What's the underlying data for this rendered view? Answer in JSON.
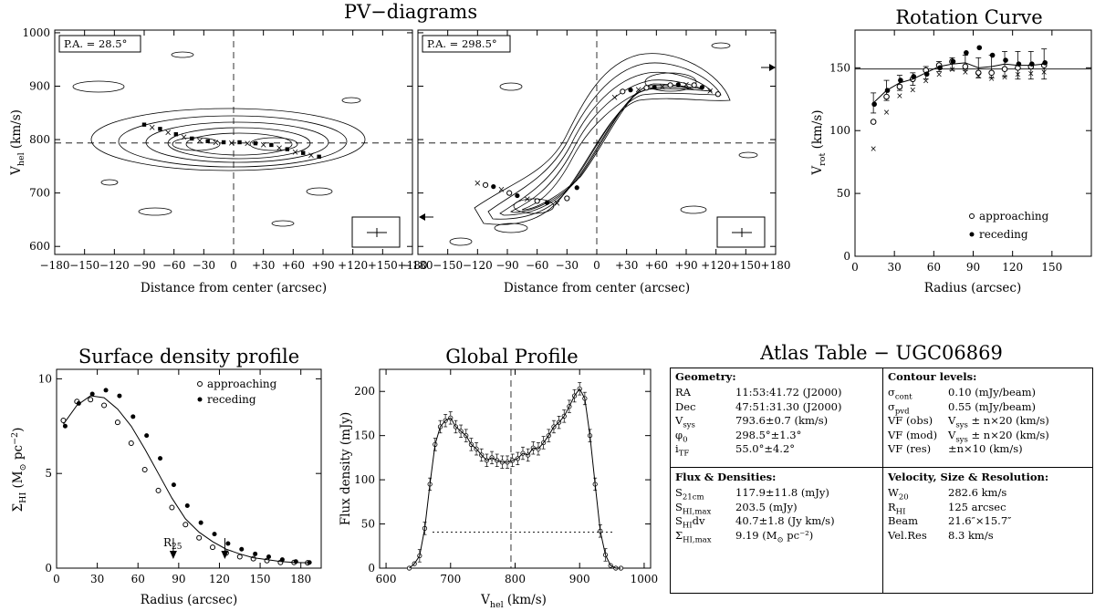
{
  "titles": {
    "pv": "PV−diagrams",
    "rotation": "Rotation Curve",
    "surface": "Surface density profile",
    "global": "Global Profile",
    "atlas": "Atlas Table − UGC06869"
  },
  "pv_left": {
    "label": "P.A. = 28.5°",
    "xlabel": "Distance from center (arcsec)",
    "ylabel_main": "V",
    "ylabel_sub": "hel",
    "ylabel_unit": " (km/s)",
    "xticks": [
      "−180",
      "−150",
      "−120",
      "−90",
      "−60",
      "−30",
      "0",
      "+30",
      "+60",
      "+90",
      "+120",
      "+150",
      "+180"
    ],
    "yticks": [
      "600",
      "700",
      "800",
      "900",
      "1000"
    ],
    "xlim": [
      -180,
      180
    ],
    "ylim": [
      585,
      1005
    ],
    "vsys": 793.6,
    "points_x": [
      -90,
      -82,
      -74,
      -66,
      -58,
      -50,
      -42,
      -34,
      -26,
      -18,
      -10,
      -2,
      6,
      14,
      22,
      30,
      38,
      46,
      54,
      62,
      70,
      78,
      86
    ],
    "points_y": [
      828,
      824,
      820,
      815,
      810,
      806,
      802,
      799,
      797,
      796,
      795,
      795,
      795,
      794,
      793,
      792,
      790,
      786,
      782,
      778,
      775,
      772,
      768
    ]
  },
  "pv_right": {
    "label": "P.A. = 298.5°",
    "xlabel": "Distance from center (arcsec)",
    "xticks": [
      "−180",
      "−150",
      "−120",
      "−90",
      "−60",
      "−30",
      "0",
      "+30",
      "+60",
      "+90",
      "+120",
      "+150",
      "+180"
    ],
    "xlim": [
      -180,
      180
    ],
    "ylim": [
      585,
      1005
    ],
    "vsys": 793.6,
    "points_x": [
      -120,
      -112,
      -104,
      -96,
      -88,
      -80,
      -70,
      -60,
      -50,
      -40,
      -30,
      -20,
      18,
      26,
      34,
      42,
      50,
      58,
      66,
      74,
      82,
      90,
      98,
      106,
      114,
      122
    ],
    "points_y": [
      720,
      715,
      712,
      708,
      700,
      695,
      690,
      685,
      682,
      682,
      690,
      710,
      880,
      890,
      893,
      895,
      897,
      898,
      900,
      902,
      903,
      904,
      902,
      898,
      892,
      885
    ]
  },
  "rotation": {
    "xlabel": "Radius (arcsec)",
    "ylabel_main": "V",
    "ylabel_sub": "rot",
    "ylabel_unit": " (km/s)",
    "xticks": [
      "0",
      "30",
      "60",
      "90",
      "120",
      "150"
    ],
    "yticks": [
      "0",
      "50",
      "100",
      "150"
    ],
    "xlim": [
      0,
      180
    ],
    "ylim": [
      0,
      180
    ],
    "hline": 149,
    "radius": [
      14,
      24,
      34,
      44,
      54,
      64,
      74,
      84,
      94,
      104,
      114,
      124,
      134,
      144
    ],
    "vrot": [
      122,
      132,
      138,
      141,
      146,
      151,
      153,
      154,
      150,
      151,
      153,
      152,
      152,
      153
    ],
    "err": [
      8,
      8,
      6,
      5,
      5,
      4,
      5,
      6,
      8,
      9,
      10,
      11,
      11,
      12
    ],
    "approaching": [
      107,
      127,
      135,
      141,
      148,
      152,
      155,
      151,
      146,
      146,
      149,
      150,
      151,
      152
    ],
    "receding": [
      121,
      132,
      140,
      143,
      145,
      150,
      155,
      162,
      166,
      160,
      156,
      153,
      153,
      154
    ],
    "model": [
      86,
      115,
      128,
      133,
      140,
      145,
      149,
      147,
      144,
      142,
      143,
      145,
      146,
      147
    ],
    "legend": [
      "approaching",
      "receding"
    ]
  },
  "surface": {
    "xlabel": "Radius (arcsec)",
    "ylabel_main": "Σ",
    "ylabel_sub": "HI",
    "ylabel_unit": " (M",
    "ylabel_tail": " pc",
    "ylabel_exp": "−2",
    "xticks": [
      "0",
      "30",
      "60",
      "90",
      "120",
      "150",
      "180"
    ],
    "yticks": [
      "0",
      "5",
      "10"
    ],
    "xlim": [
      0,
      195
    ],
    "ylim": [
      0,
      10.5
    ],
    "r25_label": "R",
    "r25_sub": "25",
    "arrows_x": [
      86,
      124
    ],
    "curve_r": [
      5,
      15,
      25,
      35,
      45,
      55,
      65,
      75,
      85,
      95,
      105,
      115,
      125,
      135,
      145,
      155,
      165,
      175,
      185
    ],
    "curve_v": [
      7.6,
      8.6,
      9.1,
      9.0,
      8.4,
      7.5,
      6.3,
      5.0,
      3.7,
      2.6,
      1.9,
      1.4,
      1.0,
      0.75,
      0.55,
      0.45,
      0.35,
      0.3,
      0.28
    ],
    "approaching": [
      7.8,
      8.8,
      8.9,
      8.6,
      7.7,
      6.6,
      5.2,
      4.1,
      3.2,
      2.3,
      1.6,
      1.1,
      0.8,
      0.6,
      0.5,
      0.4,
      0.3,
      0.3,
      0.28
    ],
    "receding": [
      7.5,
      8.7,
      9.2,
      9.4,
      9.1,
      8.0,
      7.0,
      5.8,
      4.4,
      3.3,
      2.4,
      1.8,
      1.3,
      1.0,
      0.75,
      0.6,
      0.45,
      0.35,
      0.3
    ],
    "legend": [
      "approaching",
      "receding"
    ]
  },
  "global": {
    "xlabel_main": "V",
    "xlabel_sub": "hel",
    "xlabel_unit": " (km/s)",
    "ylabel": "Flux density (mJy)",
    "xticks": [
      "600",
      "700",
      "800",
      "900",
      "1000"
    ],
    "yticks": [
      "0",
      "50",
      "100",
      "150",
      "200"
    ],
    "xlim": [
      590,
      1010
    ],
    "ylim": [
      0,
      225
    ],
    "vsys": 793.6,
    "w20_level": 40.7,
    "w20_range": [
      672,
      952
    ],
    "v": [
      636,
      644,
      652,
      660,
      668,
      676,
      684,
      692,
      700,
      708,
      716,
      724,
      732,
      740,
      748,
      756,
      764,
      772,
      780,
      788,
      796,
      804,
      812,
      820,
      828,
      836,
      844,
      852,
      860,
      868,
      876,
      884,
      892,
      900,
      908,
      916,
      924,
      932,
      940,
      948,
      956,
      964
    ],
    "flux": [
      0,
      5,
      14,
      45,
      95,
      140,
      160,
      167,
      170,
      160,
      155,
      150,
      140,
      135,
      128,
      122,
      125,
      122,
      120,
      120,
      122,
      124,
      130,
      128,
      136,
      135,
      142,
      150,
      160,
      165,
      172,
      183,
      195,
      203,
      192,
      150,
      95,
      42,
      15,
      3,
      0,
      0
    ]
  },
  "atlas": {
    "geometry": {
      "title": "Geometry:",
      "rows": [
        {
          "k": "RA",
          "v": "11:53:41.72 (J2000)"
        },
        {
          "k": "Dec",
          "v": "47:51:31.30 (J2000)"
        },
        {
          "k": "V",
          "ks": "sys",
          "v": "793.6±0.7 (km/s)"
        },
        {
          "k": "φ",
          "ks": "0",
          "v": "298.5°±1.3°"
        },
        {
          "k": "i",
          "ks": "TF",
          "v": "55.0°±4.2°"
        }
      ]
    },
    "contours": {
      "title": "Contour levels:",
      "rows": [
        {
          "k": "σ",
          "ks": "cont",
          "v": "0.10 (mJy/beam)"
        },
        {
          "k": "σ",
          "ks": "pvd",
          "v": "0.55 (mJy/beam)"
        },
        {
          "k": "VF (obs)",
          "v": "V",
          "vs": "sys",
          "vt": " ± n×20 (km/s)"
        },
        {
          "k": "VF (mod)",
          "v": "V",
          "vs": "sys",
          "vt": " ± n×20 (km/s)"
        },
        {
          "k": "VF (res)",
          "v": "±n×10 (km/s)"
        }
      ]
    },
    "flux": {
      "title": "Flux & Densities:",
      "rows": [
        {
          "k": "S",
          "ks": "21cm",
          "v": "117.9±11.8 (mJy)"
        },
        {
          "k": "S",
          "ks": "HI,max",
          "v": "203.5 (mJy)"
        },
        {
          "k": "S",
          "ks": "HI",
          "kt": "dv",
          "v": "40.7±1.8 (Jy km/s)"
        },
        {
          "k": "Σ",
          "ks": "HI,max",
          "v": "9.19 (M",
          "vs": "⊙",
          "vt": " pc⁻²)"
        }
      ]
    },
    "velocity": {
      "title": "Velocity, Size & Resolution:",
      "rows": [
        {
          "k": "W",
          "ks": "20",
          "v": "282.6 km/s"
        },
        {
          "k": "R",
          "ks": "HI",
          "v": "125 arcsec"
        },
        {
          "k": "Beam",
          "v": "21.6″×15.7″"
        },
        {
          "k": "Vel.Res",
          "v": "8.3 km/s"
        }
      ]
    }
  },
  "chart_data": [
    {
      "type": "scatter",
      "title": "PV−diagrams (P.A. = 28.5°)",
      "xlabel": "Distance from center (arcsec)",
      "ylabel": "Vhel (km/s)",
      "xlim": [
        -180,
        180
      ],
      "ylim": [
        585,
        1005
      ]
    },
    {
      "type": "scatter",
      "title": "PV−diagrams (P.A. = 298.5°)",
      "xlabel": "Distance from center (arcsec)",
      "ylabel": "Vhel (km/s)",
      "xlim": [
        -180,
        180
      ],
      "ylim": [
        585,
        1005
      ]
    },
    {
      "type": "scatter",
      "title": "Rotation Curve",
      "xlabel": "Radius (arcsec)",
      "ylabel": "Vrot (km/s)",
      "xlim": [
        0,
        180
      ],
      "ylim": [
        0,
        180
      ]
    },
    {
      "type": "line",
      "title": "Surface density profile",
      "xlabel": "Radius (arcsec)",
      "ylabel": "ΣHI (M⊙ pc−2)",
      "xlim": [
        0,
        195
      ],
      "ylim": [
        0,
        10.5
      ]
    },
    {
      "type": "line",
      "title": "Global Profile",
      "xlabel": "Vhel (km/s)",
      "ylabel": "Flux density (mJy)",
      "xlim": [
        590,
        1010
      ],
      "ylim": [
        0,
        225
      ]
    }
  ]
}
